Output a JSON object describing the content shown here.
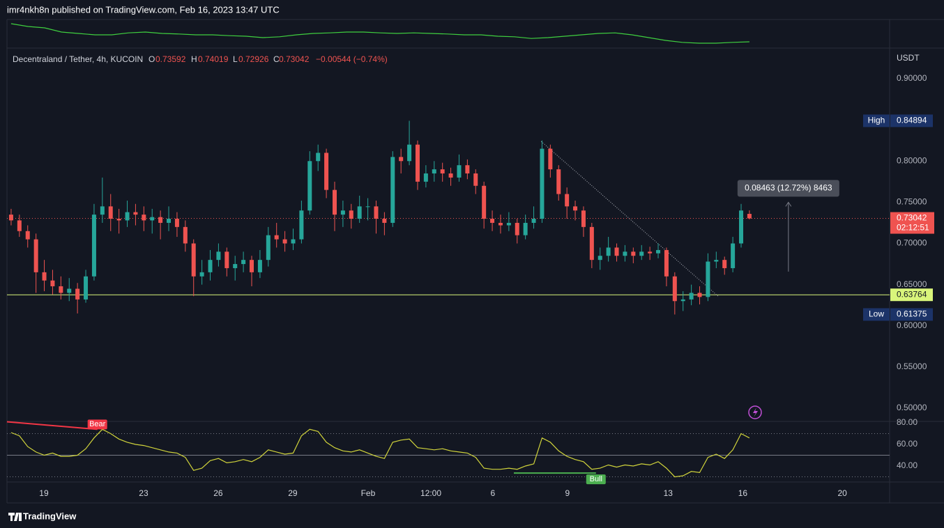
{
  "header": {
    "published": "imr4nkh8n published on TradingView.com, Feb 16, 2023 13:47 UTC"
  },
  "footer": {
    "brand": "TradingView"
  },
  "chart_data": {
    "type": "candlestick",
    "symbol": "Decentraland / Tether, 4h, KUCOIN",
    "legend_keys": [
      "O",
      "H",
      "L",
      "C"
    ],
    "change": "−0.00544 (−0.74%)",
    "currency": "USDT",
    "up_color": "#26a69a",
    "down_color": "#ef5350",
    "grid": false,
    "ylim": [
      0.4839,
      0.9364
    ],
    "yticks": [
      {
        "value": 0.9,
        "label": "0.90000"
      },
      {
        "value": 0.8,
        "label": "0.80000"
      },
      {
        "value": 0.75,
        "label": "0.75000"
      },
      {
        "value": 0.7,
        "label": "0.70000"
      },
      {
        "value": 0.65,
        "label": "0.65000"
      },
      {
        "value": 0.6,
        "label": "0.60000"
      },
      {
        "value": 0.55,
        "label": "0.55000"
      },
      {
        "value": 0.5,
        "label": "0.50000"
      }
    ],
    "xlim": [
      -0.5,
      105.9
    ],
    "xticks": [
      {
        "value": 3.95,
        "label": "19"
      },
      {
        "value": 15.97,
        "label": "23"
      },
      {
        "value": 24.96,
        "label": "26"
      },
      {
        "value": 33.95,
        "label": "29"
      },
      {
        "value": 43.03,
        "label": "Feb"
      },
      {
        "value": 50.6,
        "label": "12:00"
      },
      {
        "value": 58.07,
        "label": "6"
      },
      {
        "value": 67.06,
        "label": "9"
      },
      {
        "value": 79.2,
        "label": "13"
      },
      {
        "value": 88.2,
        "label": "16"
      },
      {
        "value": 100.2,
        "label": "20"
      }
    ],
    "ohlc": [
      [
        0.735,
        0.742,
        0.722,
        0.728
      ],
      [
        0.728,
        0.735,
        0.708,
        0.715
      ],
      [
        0.715,
        0.722,
        0.695,
        0.705
      ],
      [
        0.705,
        0.712,
        0.64,
        0.665
      ],
      [
        0.665,
        0.68,
        0.642,
        0.655
      ],
      [
        0.655,
        0.668,
        0.638,
        0.648
      ],
      [
        0.648,
        0.66,
        0.632,
        0.64
      ],
      [
        0.64,
        0.658,
        0.63,
        0.645
      ],
      [
        0.645,
        0.652,
        0.615,
        0.632
      ],
      [
        0.632,
        0.668,
        0.628,
        0.66
      ],
      [
        0.66,
        0.748,
        0.655,
        0.735
      ],
      [
        0.735,
        0.78,
        0.725,
        0.745
      ],
      [
        0.745,
        0.76,
        0.715,
        0.73
      ],
      [
        0.73,
        0.742,
        0.712,
        0.728
      ],
      [
        0.728,
        0.752,
        0.72,
        0.738
      ],
      [
        0.738,
        0.748,
        0.722,
        0.735
      ],
      [
        0.735,
        0.745,
        0.715,
        0.728
      ],
      [
        0.728,
        0.742,
        0.712,
        0.732
      ],
      [
        0.732,
        0.74,
        0.705,
        0.725
      ],
      [
        0.725,
        0.745,
        0.715,
        0.73
      ],
      [
        0.73,
        0.738,
        0.708,
        0.72
      ],
      [
        0.72,
        0.728,
        0.69,
        0.7
      ],
      [
        0.7,
        0.705,
        0.636,
        0.66
      ],
      [
        0.66,
        0.68,
        0.65,
        0.665
      ],
      [
        0.665,
        0.692,
        0.655,
        0.68
      ],
      [
        0.68,
        0.7,
        0.672,
        0.69
      ],
      [
        0.69,
        0.695,
        0.66,
        0.67
      ],
      [
        0.67,
        0.685,
        0.655,
        0.675
      ],
      [
        0.675,
        0.69,
        0.665,
        0.68
      ],
      [
        0.68,
        0.685,
        0.648,
        0.665
      ],
      [
        0.665,
        0.692,
        0.658,
        0.68
      ],
      [
        0.68,
        0.72,
        0.672,
        0.71
      ],
      [
        0.71,
        0.725,
        0.695,
        0.705
      ],
      [
        0.705,
        0.715,
        0.69,
        0.7
      ],
      [
        0.7,
        0.718,
        0.692,
        0.705
      ],
      [
        0.705,
        0.752,
        0.7,
        0.74
      ],
      [
        0.74,
        0.812,
        0.735,
        0.8
      ],
      [
        0.8,
        0.82,
        0.788,
        0.81
      ],
      [
        0.81,
        0.815,
        0.755,
        0.765
      ],
      [
        0.765,
        0.775,
        0.715,
        0.735
      ],
      [
        0.735,
        0.752,
        0.72,
        0.74
      ],
      [
        0.74,
        0.748,
        0.718,
        0.73
      ],
      [
        0.73,
        0.758,
        0.725,
        0.745
      ],
      [
        0.745,
        0.755,
        0.728,
        0.745
      ],
      [
        0.745,
        0.752,
        0.712,
        0.73
      ],
      [
        0.73,
        0.738,
        0.71,
        0.725
      ],
      [
        0.725,
        0.812,
        0.72,
        0.805
      ],
      [
        0.805,
        0.815,
        0.785,
        0.8
      ],
      [
        0.8,
        0.84894,
        0.795,
        0.82
      ],
      [
        0.82,
        0.825,
        0.765,
        0.775
      ],
      [
        0.775,
        0.795,
        0.768,
        0.785
      ],
      [
        0.785,
        0.8,
        0.775,
        0.79
      ],
      [
        0.79,
        0.798,
        0.775,
        0.785
      ],
      [
        0.785,
        0.792,
        0.77,
        0.78
      ],
      [
        0.78,
        0.808,
        0.775,
        0.795
      ],
      [
        0.795,
        0.802,
        0.778,
        0.785
      ],
      [
        0.785,
        0.79,
        0.76,
        0.77
      ],
      [
        0.77,
        0.775,
        0.718,
        0.73
      ],
      [
        0.73,
        0.74,
        0.715,
        0.725
      ],
      [
        0.725,
        0.735,
        0.712,
        0.722
      ],
      [
        0.722,
        0.738,
        0.715,
        0.725
      ],
      [
        0.725,
        0.73,
        0.7,
        0.71
      ],
      [
        0.71,
        0.735,
        0.705,
        0.725
      ],
      [
        0.725,
        0.745,
        0.718,
        0.73
      ],
      [
        0.73,
        0.825,
        0.725,
        0.815
      ],
      [
        0.815,
        0.82,
        0.78,
        0.79
      ],
      [
        0.79,
        0.795,
        0.752,
        0.76
      ],
      [
        0.76,
        0.768,
        0.73,
        0.745
      ],
      [
        0.745,
        0.752,
        0.728,
        0.74
      ],
      [
        0.74,
        0.745,
        0.708,
        0.72
      ],
      [
        0.72,
        0.725,
        0.67,
        0.68
      ],
      [
        0.68,
        0.695,
        0.668,
        0.685
      ],
      [
        0.685,
        0.708,
        0.678,
        0.695
      ],
      [
        0.695,
        0.7,
        0.678,
        0.685
      ],
      [
        0.685,
        0.698,
        0.678,
        0.69
      ],
      [
        0.69,
        0.695,
        0.676,
        0.685
      ],
      [
        0.685,
        0.698,
        0.68,
        0.69
      ],
      [
        0.69,
        0.696,
        0.68,
        0.688
      ],
      [
        0.688,
        0.7,
        0.682,
        0.692
      ],
      [
        0.692,
        0.695,
        0.648,
        0.66
      ],
      [
        0.66,
        0.665,
        0.61375,
        0.63
      ],
      [
        0.63,
        0.642,
        0.618,
        0.632
      ],
      [
        0.632,
        0.65,
        0.625,
        0.64
      ],
      [
        0.64,
        0.648,
        0.626,
        0.635
      ],
      [
        0.635,
        0.688,
        0.63,
        0.678
      ],
      [
        0.678,
        0.69,
        0.67,
        0.68
      ],
      [
        0.68,
        0.684,
        0.662,
        0.67
      ],
      [
        0.67,
        0.708,
        0.665,
        0.7
      ],
      [
        0.7,
        0.748,
        0.695,
        0.74
      ],
      [
        0.73592,
        0.74019,
        0.72926,
        0.73042
      ]
    ],
    "high": {
      "label": "High",
      "candle": 48
    },
    "low": {
      "label": "Low",
      "candle": 80
    },
    "extremes_color": "#1c3368",
    "countdown": "02:12:51",
    "hline": {
      "value": 0.63764,
      "color": "#d9f57b"
    },
    "trendline": {
      "x": [
        63.9,
        85.2
      ],
      "y": [
        0.8239,
        0.6361
      ],
      "color": "#b2b5be"
    },
    "measure": {
      "label": "0.08463 (12.72%) 8463",
      "x": 93.7,
      "y": [
        0.6658,
        0.75
      ]
    },
    "top_indicator": {
      "color": "#3fcf3f",
      "ylim": [
        0,
        100
      ],
      "values": [
        85,
        75,
        70,
        55,
        50,
        45,
        45,
        52,
        55,
        50,
        48,
        45,
        45,
        42,
        40,
        35,
        38,
        45,
        50,
        52,
        55,
        55,
        52,
        50,
        52,
        50,
        48,
        45,
        45,
        40,
        38,
        32,
        35,
        40,
        45,
        50,
        52,
        45,
        35,
        25,
        18,
        15,
        15,
        18,
        20
      ]
    },
    "rsi": {
      "color": "#d1d43b",
      "ylim": [
        25.2,
        81.3
      ],
      "yticks": [
        {
          "value": 80,
          "label": "80.00"
        },
        {
          "value": 60,
          "label": "60.00"
        },
        {
          "value": 40,
          "label": "40.00"
        }
      ],
      "bands": [
        70,
        50,
        30
      ],
      "values": [
        71,
        68,
        58,
        53,
        50,
        52,
        49,
        49,
        50,
        56,
        66,
        74,
        70,
        65,
        62,
        60,
        59,
        57,
        55,
        53,
        52,
        48,
        36,
        38,
        45,
        47,
        43,
        44,
        46,
        44,
        48,
        55,
        53,
        51,
        52,
        68,
        74,
        72,
        62,
        57,
        54,
        53,
        55,
        52,
        49,
        47,
        62,
        64,
        65,
        57,
        56,
        55,
        56,
        54,
        53,
        52,
        48,
        38,
        37,
        37,
        38,
        37,
        40,
        42,
        66,
        62,
        54,
        49,
        46,
        44,
        37,
        38,
        41,
        39,
        41,
        40,
        42,
        41,
        44,
        38,
        30,
        31,
        35,
        34,
        48,
        51,
        47,
        55,
        70,
        66
      ]
    },
    "divergences": [
      {
        "label": "Bear",
        "color": "#f23645",
        "x": [
          -0.5,
          10.4
        ],
        "y": [
          81,
          74
        ]
      },
      {
        "label": "Bull",
        "color": "#4caf50",
        "x": [
          60.6,
          70.5
        ],
        "y": [
          33.5,
          33.5
        ]
      }
    ]
  }
}
